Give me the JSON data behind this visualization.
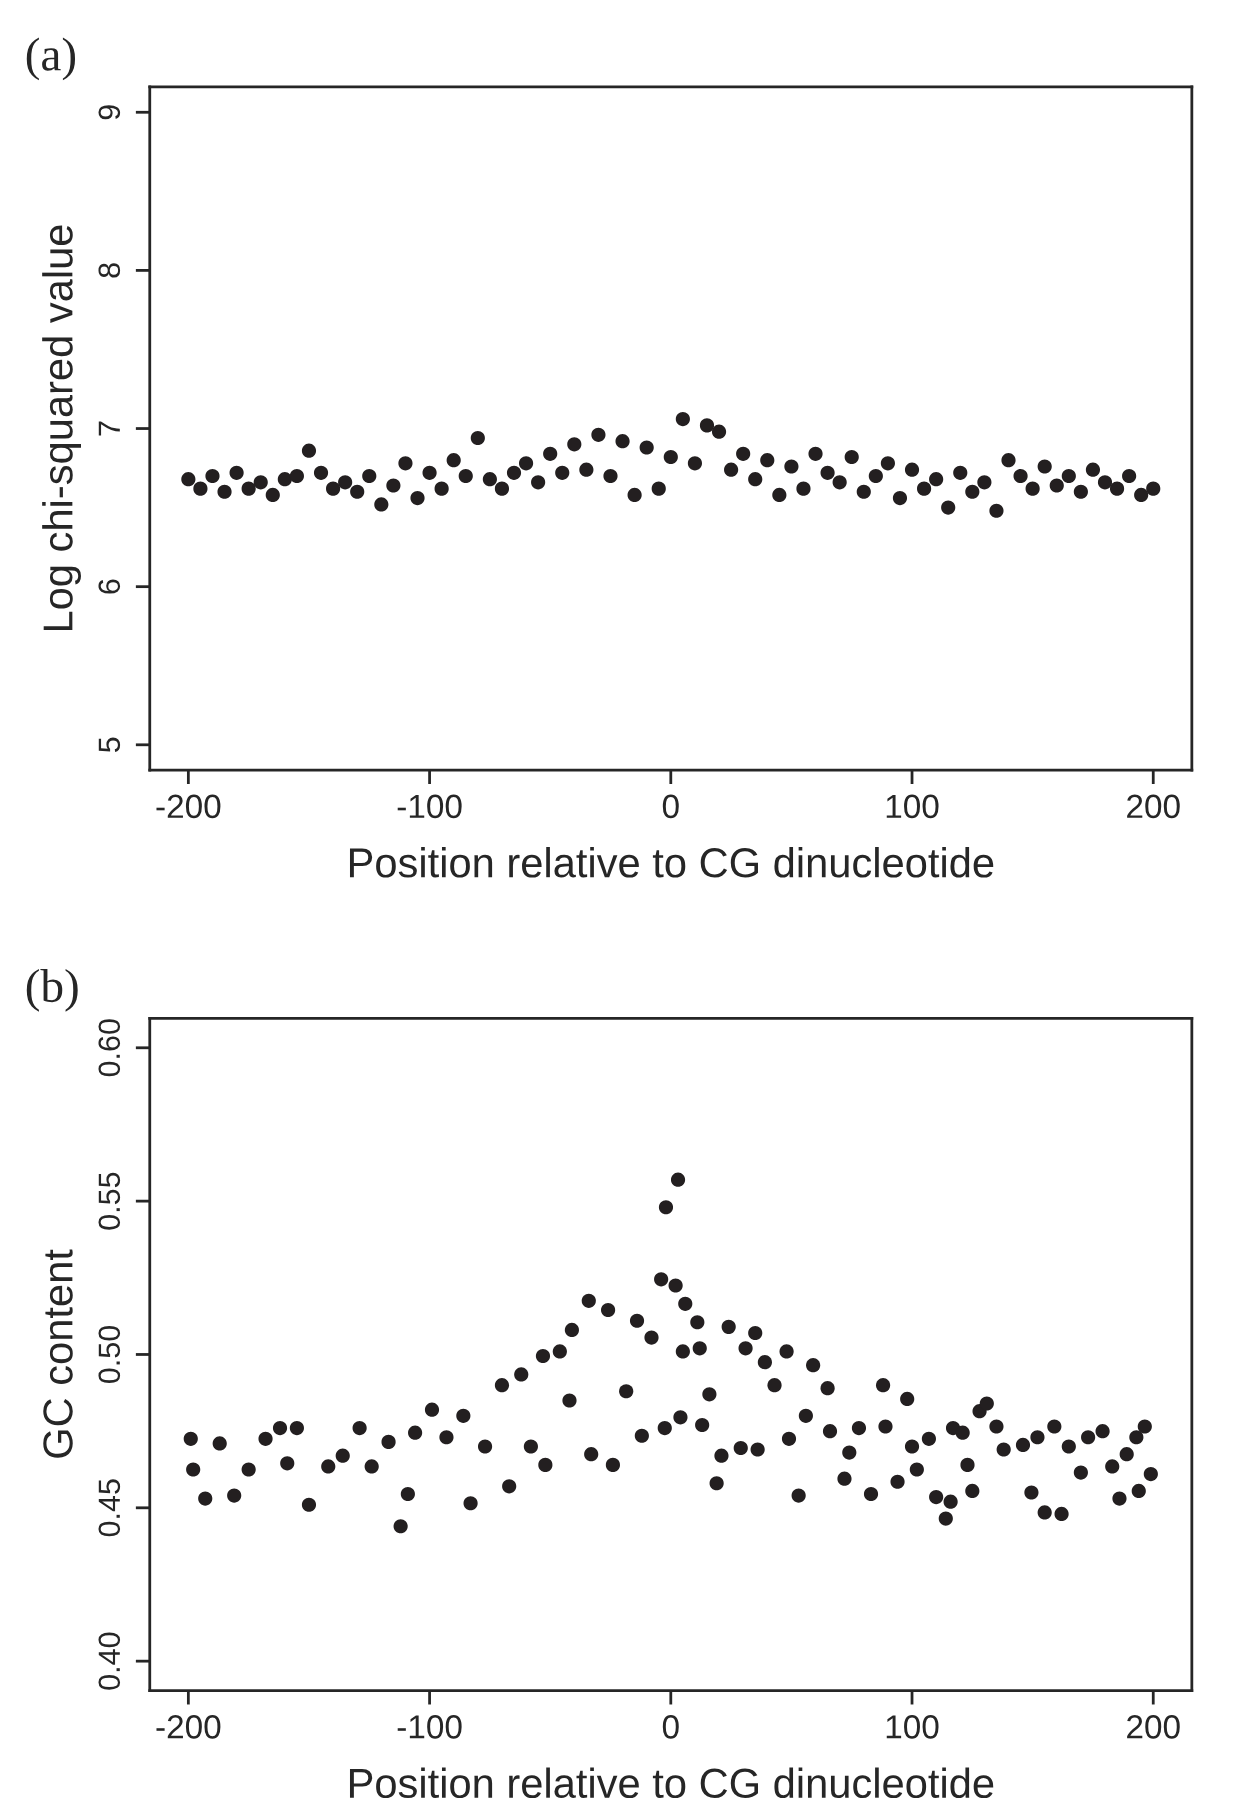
{
  "chart_data": [
    {
      "type": "scatter",
      "title": "(a)",
      "xlabel": "Position relative to CG dinucleotide",
      "ylabel": "Log chi-squared value",
      "xlim": [
        -216,
        216
      ],
      "xticks": [
        -200,
        -100,
        0,
        100,
        200
      ],
      "ylim": [
        4.84,
        9.16
      ],
      "yticks": [
        5,
        6,
        7,
        8,
        9
      ],
      "marker": "circle",
      "grid": false,
      "legend": false,
      "series": [
        {
          "color": "#231f20",
          "x": [
            -200,
            -195,
            -190,
            -185,
            -180,
            -175,
            -170,
            -165,
            -160,
            -155,
            -150,
            -145,
            -140,
            -135,
            -130,
            -125,
            -120,
            -115,
            -110,
            -105,
            -100,
            -95,
            -90,
            -85,
            -80,
            -75,
            -70,
            -65,
            -60,
            -55,
            -50,
            -45,
            -40,
            -35,
            -30,
            -25,
            -20,
            -15,
            -10,
            -5,
            0,
            5,
            10,
            15,
            20,
            25,
            30,
            35,
            40,
            45,
            50,
            55,
            60,
            65,
            70,
            75,
            80,
            85,
            90,
            95,
            100,
            105,
            110,
            115,
            120,
            125,
            130,
            135,
            140,
            145,
            150,
            155,
            160,
            165,
            170,
            175,
            180,
            185,
            190,
            195,
            200
          ],
          "values": [
            6.68,
            6.62,
            6.7,
            6.6,
            6.72,
            6.62,
            6.66,
            6.58,
            6.68,
            6.7,
            6.86,
            6.72,
            6.62,
            6.66,
            6.6,
            6.7,
            6.52,
            6.64,
            6.78,
            6.56,
            6.72,
            6.62,
            6.8,
            6.7,
            6.94,
            6.68,
            6.62,
            6.72,
            6.78,
            6.66,
            6.84,
            6.72,
            6.9,
            6.74,
            6.96,
            6.7,
            6.92,
            6.58,
            6.88,
            6.62,
            6.82,
            7.06,
            6.78,
            7.02,
            6.98,
            6.74,
            6.84,
            6.68,
            6.8,
            6.58,
            6.76,
            6.62,
            6.84,
            6.72,
            6.66,
            6.82,
            6.6,
            6.7,
            6.78,
            6.56,
            6.74,
            6.62,
            6.68,
            6.5,
            6.72,
            6.6,
            6.66,
            6.48,
            6.8,
            6.7,
            6.62,
            6.76,
            6.64,
            6.7,
            6.6,
            6.74,
            6.66,
            6.62,
            6.7,
            6.58,
            6.62
          ]
        }
      ]
    },
    {
      "type": "scatter",
      "title": "(b)",
      "xlabel": "Position relative to CG dinucleotide",
      "ylabel": "GC content",
      "xlim": [
        -216,
        216
      ],
      "xticks": [
        -200,
        -100,
        0,
        100,
        200
      ],
      "ylim": [
        0.3904,
        0.6096
      ],
      "yticks": [
        {
          "value": 0.4,
          "label": "0.40"
        },
        {
          "value": 0.45,
          "label": "0.45"
        },
        {
          "value": 0.5,
          "label": "0.50"
        },
        {
          "value": 0.55,
          "label": "0.55"
        },
        {
          "value": 0.6,
          "label": "0.60"
        }
      ],
      "marker": "circle",
      "grid": false,
      "legend": false,
      "series": [
        {
          "color": "#231f20",
          "x": [
            -199,
            -198,
            -193,
            -187,
            -181,
            -175,
            -168,
            -162,
            -159,
            -155,
            -150,
            -142,
            -136,
            -129,
            -124,
            -117,
            -112,
            -109,
            -106,
            -99,
            -93,
            -86,
            -83,
            -77,
            -70,
            -67,
            -62,
            -58,
            -53,
            -52,
            -46,
            -42,
            -41,
            -34,
            -33,
            -26,
            -24,
            -18.5,
            -14,
            -12,
            -8,
            -4,
            -2.5,
            -2,
            2,
            3,
            4,
            5,
            6,
            11,
            12,
            13,
            16,
            19,
            21,
            24,
            29,
            31,
            35,
            36,
            39,
            43,
            48,
            49,
            53,
            56,
            59,
            65,
            66,
            72,
            74,
            78,
            83,
            88,
            89,
            94,
            98,
            100,
            102,
            107,
            110,
            114,
            116,
            117,
            121,
            123,
            125,
            128,
            131,
            135,
            138,
            146,
            149.5,
            152,
            155,
            159,
            162,
            165,
            170,
            173,
            179,
            183,
            186,
            189,
            193,
            194,
            196.5,
            199
          ],
          "values": [
            0.4725,
            0.4625,
            0.453,
            0.471,
            0.454,
            0.4625,
            0.4725,
            0.476,
            0.4645,
            0.476,
            0.451,
            0.4635,
            0.467,
            0.476,
            0.4635,
            0.4715,
            0.444,
            0.4545,
            0.4745,
            0.482,
            0.473,
            0.48,
            0.4515,
            0.47,
            0.49,
            0.457,
            0.4935,
            0.47,
            0.4995,
            0.464,
            0.501,
            0.485,
            0.508,
            0.5175,
            0.4675,
            0.5145,
            0.464,
            0.488,
            0.511,
            0.4735,
            0.5055,
            0.5245,
            0.476,
            0.548,
            0.5225,
            0.557,
            0.4795,
            0.501,
            0.5165,
            0.5105,
            0.502,
            0.477,
            0.487,
            0.458,
            0.467,
            0.509,
            0.4695,
            0.502,
            0.507,
            0.469,
            0.4975,
            0.49,
            0.501,
            0.4725,
            0.454,
            0.48,
            0.4965,
            0.489,
            0.475,
            0.4595,
            0.468,
            0.476,
            0.4545,
            0.49,
            0.4765,
            0.4585,
            0.4855,
            0.47,
            0.4625,
            0.4725,
            0.4535,
            0.4465,
            0.452,
            0.476,
            0.4745,
            0.464,
            0.4555,
            0.4815,
            0.484,
            0.4765,
            0.469,
            0.4705,
            0.455,
            0.473,
            0.4485,
            0.4765,
            0.448,
            0.47,
            0.4615,
            0.473,
            0.475,
            0.4635,
            0.453,
            0.4675,
            0.473,
            0.4555,
            0.4765,
            0.461
          ]
        }
      ]
    }
  ]
}
